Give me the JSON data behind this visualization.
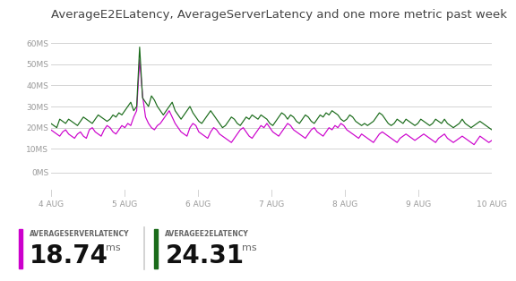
{
  "title": "AverageE2ELatency, AverageServerLatency and one more metric past week",
  "title_fontsize": 9.5,
  "background_color": "#ffffff",
  "plot_bg_color": "#ffffff",
  "grid_color": "#cccccc",
  "ylim": [
    0,
    65
  ],
  "yticks": [
    0,
    10,
    20,
    30,
    40,
    50,
    60
  ],
  "ytick_labels": [
    "0MS",
    "10MS",
    "20MS",
    "30MS",
    "40MS",
    "50MS",
    "60MS"
  ],
  "xtick_labels": [
    "4 AUG",
    "5 AUG",
    "6 AUG",
    "7 AUG",
    "8 AUG",
    "9 AUG",
    "10 AUG"
  ],
  "magenta_color": "#cc00cc",
  "green_color": "#1a6b1a",
  "legend1_label": "AVERAGESERVERLATENCY",
  "legend1_value": "18.74",
  "legend1_unit": "ms",
  "legend2_label": "AVERAGEE2ELATENCY",
  "legend2_value": "24.31",
  "legend2_unit": "ms",
  "magenta_data": [
    19,
    18,
    17,
    16,
    18,
    19,
    17,
    16,
    15,
    17,
    18,
    16,
    15,
    19,
    20,
    18,
    17,
    16,
    19,
    21,
    20,
    18,
    17,
    19,
    21,
    20,
    22,
    21,
    25,
    28,
    52,
    35,
    25,
    22,
    20,
    19,
    21,
    22,
    24,
    26,
    28,
    25,
    22,
    20,
    18,
    17,
    16,
    20,
    22,
    21,
    18,
    17,
    16,
    15,
    18,
    20,
    19,
    17,
    16,
    15,
    14,
    13,
    15,
    17,
    19,
    20,
    18,
    16,
    15,
    17,
    19,
    21,
    20,
    22,
    20,
    18,
    17,
    16,
    18,
    20,
    22,
    21,
    19,
    18,
    17,
    16,
    15,
    17,
    19,
    20,
    18,
    17,
    16,
    18,
    20,
    19,
    21,
    20,
    22,
    21,
    19,
    18,
    17,
    16,
    15,
    17,
    16,
    15,
    14,
    13,
    15,
    17,
    18,
    17,
    16,
    15,
    14,
    13,
    15,
    16,
    17,
    16,
    15,
    14,
    15,
    16,
    17,
    16,
    15,
    14,
    13,
    15,
    16,
    17,
    15,
    14,
    13,
    14,
    15,
    16,
    15,
    14,
    13,
    12,
    14,
    16,
    15,
    14,
    13,
    14
  ],
  "green_data": [
    22,
    21,
    20,
    24,
    23,
    22,
    24,
    23,
    22,
    21,
    23,
    25,
    24,
    23,
    22,
    24,
    26,
    25,
    24,
    23,
    24,
    26,
    25,
    27,
    26,
    28,
    30,
    32,
    28,
    30,
    58,
    34,
    32,
    30,
    35,
    33,
    30,
    28,
    26,
    28,
    30,
    32,
    28,
    26,
    24,
    26,
    28,
    30,
    27,
    25,
    23,
    22,
    24,
    26,
    28,
    26,
    24,
    22,
    20,
    21,
    23,
    25,
    24,
    22,
    21,
    23,
    25,
    24,
    26,
    25,
    24,
    26,
    25,
    24,
    22,
    21,
    23,
    25,
    27,
    26,
    24,
    26,
    25,
    23,
    22,
    24,
    26,
    25,
    23,
    22,
    24,
    26,
    25,
    27,
    26,
    28,
    27,
    26,
    24,
    23,
    24,
    26,
    25,
    23,
    22,
    21,
    22,
    21,
    22,
    23,
    25,
    27,
    26,
    24,
    22,
    21,
    22,
    24,
    23,
    22,
    24,
    23,
    22,
    21,
    22,
    24,
    23,
    22,
    21,
    22,
    24,
    23,
    22,
    24,
    22,
    21,
    20,
    21,
    22,
    24,
    22,
    21,
    20,
    21,
    22,
    23,
    22,
    21,
    20,
    19
  ]
}
